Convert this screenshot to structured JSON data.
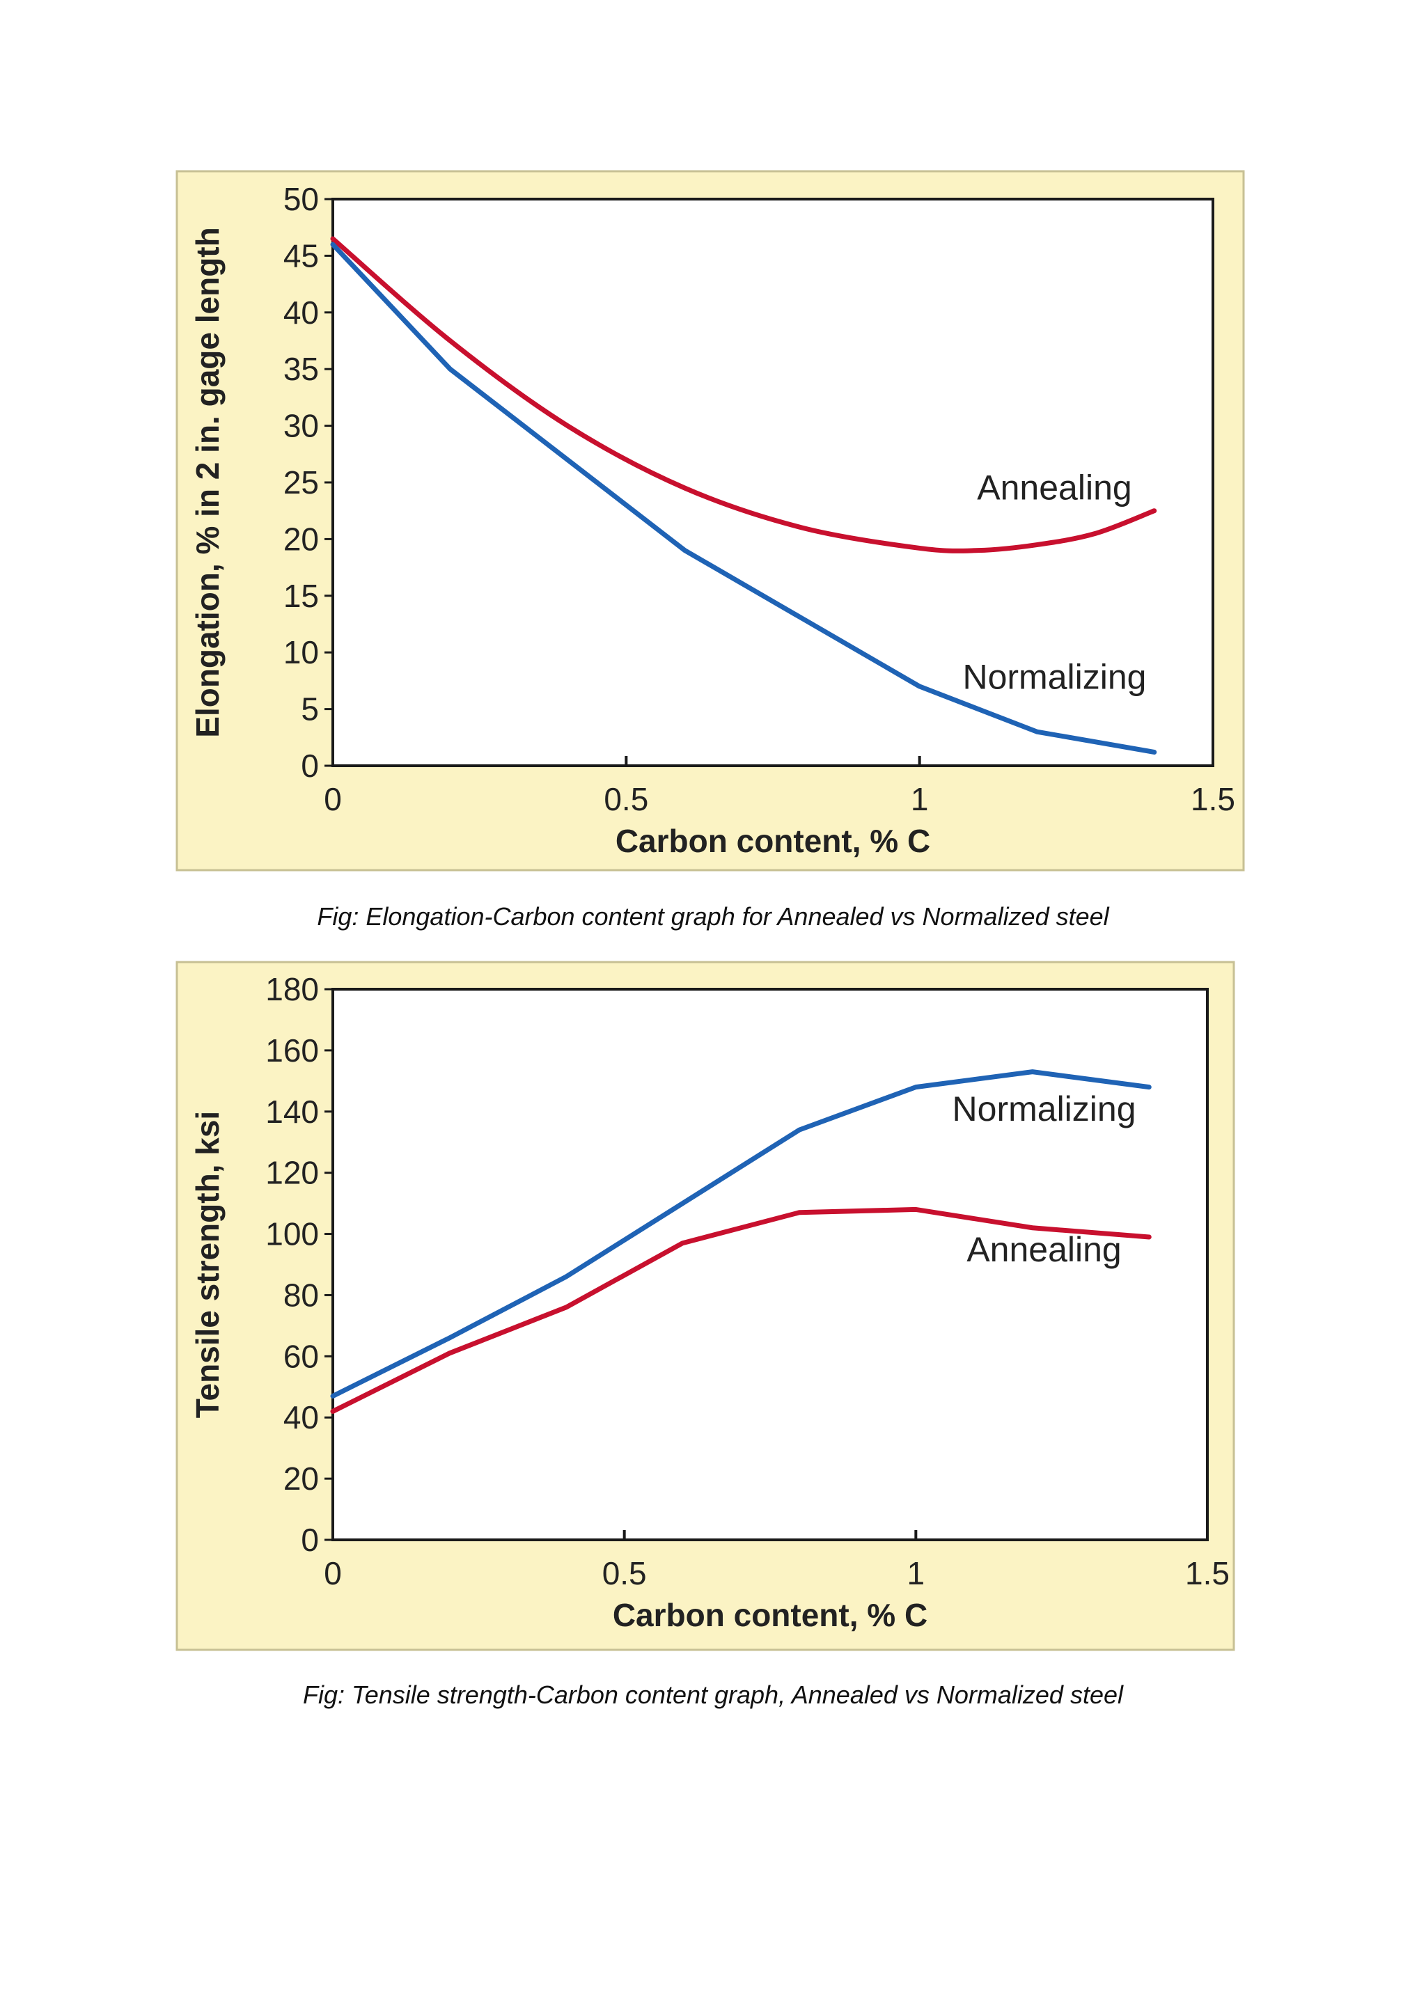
{
  "chart_data": [
    {
      "type": "line",
      "xlabel": "Carbon content, % C",
      "ylabel": "Elongation, % in 2 in. gage length",
      "xlim": [
        0,
        1.5
      ],
      "ylim": [
        0,
        50
      ],
      "xticks": [
        0,
        0.5,
        1,
        1.5
      ],
      "xtick_labels": [
        "0",
        "0.5",
        "1",
        "1.5"
      ],
      "yticks": [
        0,
        5,
        10,
        15,
        20,
        25,
        30,
        35,
        40,
        45,
        50
      ],
      "ytick_labels": [
        "0",
        "5",
        "10",
        "15",
        "20",
        "25",
        "30",
        "35",
        "40",
        "45",
        "50"
      ],
      "grid": false,
      "legend": "inline labels",
      "caption": "Fig: Elongation-Carbon content graph for Annealed vs Normalized steel",
      "series": [
        {
          "name": "Annealing",
          "color": "#c8102e",
          "label_at": [
            1.23,
            23.5
          ],
          "smooth": true,
          "x": [
            0,
            0.2,
            0.4,
            0.6,
            0.8,
            1.0,
            1.1,
            1.2,
            1.3,
            1.4
          ],
          "y": [
            46.5,
            37.5,
            30.0,
            24.5,
            21.0,
            19.2,
            19.0,
            19.5,
            20.5,
            22.5
          ]
        },
        {
          "name": "Normalizing",
          "color": "#1f63b5",
          "label_at": [
            1.23,
            6.8
          ],
          "smooth": false,
          "x": [
            0,
            0.2,
            0.4,
            0.6,
            0.8,
            1.0,
            1.2,
            1.4
          ],
          "y": [
            46,
            35,
            27,
            19,
            13,
            7,
            3,
            1.2
          ]
        }
      ]
    },
    {
      "type": "line",
      "xlabel": "Carbon content, % C",
      "ylabel": "Tensile strength, ksi",
      "xlim": [
        0,
        1.5
      ],
      "ylim": [
        0,
        180
      ],
      "xticks": [
        0,
        0.5,
        1,
        1.5
      ],
      "xtick_labels": [
        "0",
        "0.5",
        "1",
        "1.5"
      ],
      "yticks": [
        0,
        20,
        40,
        60,
        80,
        100,
        120,
        140,
        160,
        180
      ],
      "ytick_labels": [
        "0",
        "20",
        "40",
        "60",
        "80",
        "100",
        "120",
        "140",
        "160",
        "180"
      ],
      "grid": false,
      "legend": "inline labels",
      "caption": "Fig: Tensile strength-Carbon content graph, Annealed vs Normalized steel",
      "series": [
        {
          "name": "Normalizing",
          "color": "#1f63b5",
          "label_at": [
            1.22,
            137
          ],
          "smooth": false,
          "x": [
            0,
            0.2,
            0.4,
            0.6,
            0.8,
            1.0,
            1.2,
            1.4
          ],
          "y": [
            47,
            66,
            86,
            110,
            134,
            148,
            153,
            148
          ]
        },
        {
          "name": "Annealing",
          "color": "#c8102e",
          "label_at": [
            1.22,
            91
          ],
          "smooth": false,
          "x": [
            0,
            0.2,
            0.4,
            0.6,
            0.8,
            1.0,
            1.2,
            1.4
          ],
          "y": [
            42,
            61,
            76,
            97,
            107,
            108,
            102,
            99
          ]
        }
      ]
    }
  ]
}
